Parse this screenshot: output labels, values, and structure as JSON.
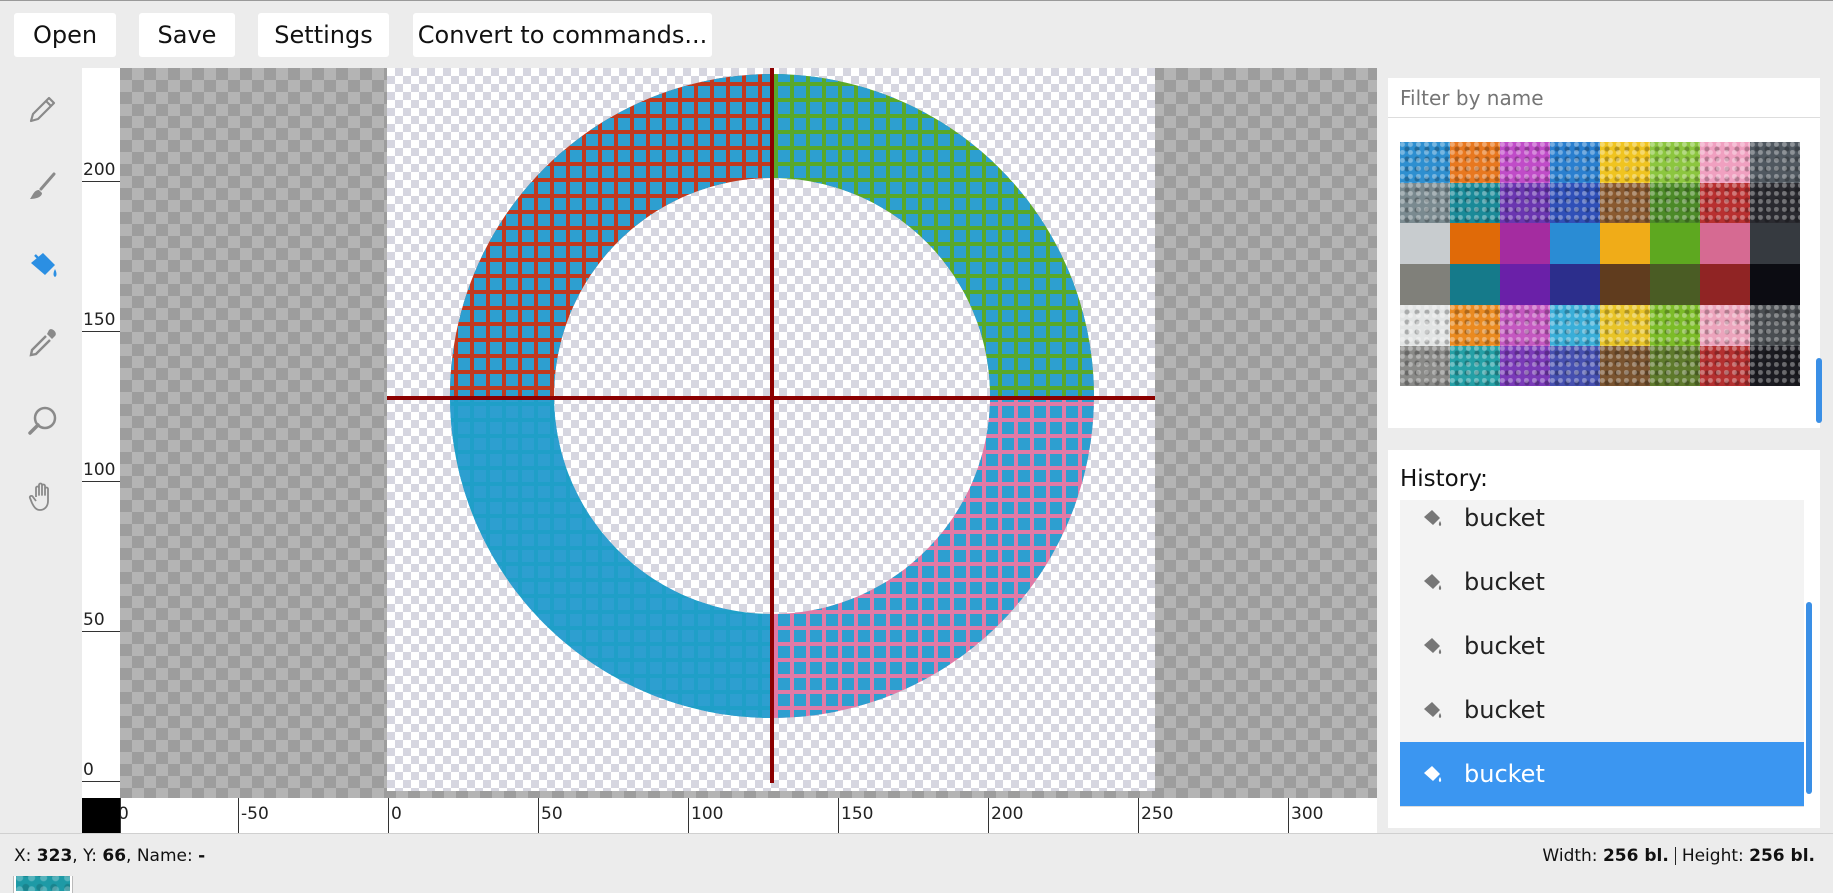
{
  "toolbar": {
    "open_label": "Open",
    "save_label": "Save",
    "settings_label": "Settings",
    "convert_label": "Convert to commands..."
  },
  "tools": [
    {
      "name": "pencil-icon",
      "active": false
    },
    {
      "name": "brush-icon",
      "active": false
    },
    {
      "name": "paint-bucket-icon",
      "active": true
    },
    {
      "name": "eyedropper-icon",
      "active": false
    },
    {
      "name": "magnifier-icon",
      "active": false
    },
    {
      "name": "hand-icon",
      "active": false
    }
  ],
  "current_block_color": "#1e9aa6",
  "ruler": {
    "vertical_labels": [
      "200",
      "150",
      "100",
      "50",
      "0"
    ],
    "horizontal_labels": [
      "0",
      "-50",
      "0",
      "50",
      "100",
      "150",
      "200",
      "250",
      "300"
    ]
  },
  "palette": {
    "filter_placeholder": "Filter by name",
    "rows": [
      [
        "#2e8fd0",
        "#e8781f",
        "#c04cc8",
        "#2a7fcf",
        "#f0c420",
        "#8cc63f",
        "#f0a0c0",
        "#505860"
      ],
      [
        "#7a8a90",
        "#1a8a98",
        "#6a36b0",
        "#3050b8",
        "#8a5a30",
        "#4c8a28",
        "#b83030",
        "#2a2a30"
      ],
      [
        "#c8cccf",
        "#e06a08",
        "#a42ca0",
        "#2a8cd4",
        "#f0ac18",
        "#5ea820",
        "#d66a92",
        "#363a40"
      ],
      [
        "#80807a",
        "#157a8a",
        "#6a20a8",
        "#2c2e8c",
        "#603c1e",
        "#4a5c24",
        "#902424",
        "#0c0c12"
      ],
      [
        "#e2e4e4",
        "#ea8a20",
        "#c458c0",
        "#3aaed8",
        "#e8c428",
        "#7cbc28",
        "#eca4bc",
        "#4a4e52"
      ],
      [
        "#8a8a88",
        "#24a0a6",
        "#7a3ab8",
        "#4650b0",
        "#7a5430",
        "#5e7a2c",
        "#b43030",
        "#1c1c22"
      ],
      [
        "#1e9aa6",
        "#1e9aa6",
        "#1e9aa6",
        "#1e9aa6",
        "#1e9aa6",
        "#1e9aa6",
        "#1e9aa6",
        "#1e9aa6"
      ]
    ]
  },
  "history": {
    "title": "History:",
    "items": [
      {
        "label": "bucket",
        "selected": false
      },
      {
        "label": "bucket",
        "selected": false
      },
      {
        "label": "bucket",
        "selected": false
      },
      {
        "label": "bucket",
        "selected": false
      },
      {
        "label": "bucket",
        "selected": true
      }
    ]
  },
  "status": {
    "x_label": "X: ",
    "x_value": "323",
    "y_label": ", Y: ",
    "y_value": "66",
    "name_label": ", Name: ",
    "name_value": "-",
    "width_label": "Width: ",
    "width_value": "256 bl.",
    "height_label": "Height: ",
    "height_value": "256 bl."
  },
  "drawing": {
    "quadrant_colors": {
      "top_left": "#c0391e",
      "top_right": "#59a82a",
      "bottom_left": "#1f9fc8",
      "bottom_right": "#e07aa6"
    },
    "block_color": "#2d9fd0",
    "axis_color": "#8b0000"
  }
}
